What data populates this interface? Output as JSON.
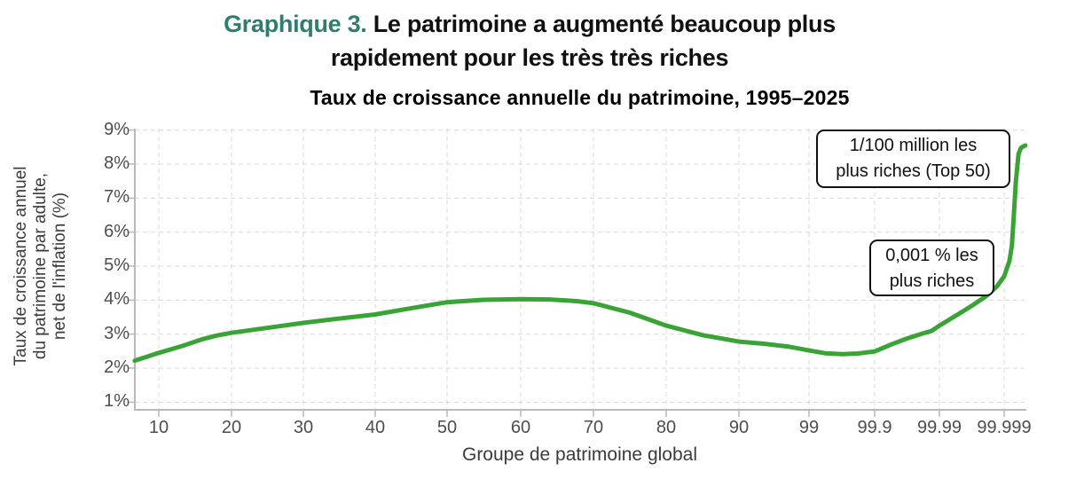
{
  "header": {
    "figure_label": "Graphique 3.",
    "title_line1": "Le patrimoine a augmenté beaucoup plus",
    "title_line2": "rapidement pour les très très riches"
  },
  "colors": {
    "accent_green": "#2E7D6E",
    "line_green": "#3AA336",
    "grid": "#D8D8D8",
    "axis": "#B9B9B9",
    "tick_text": "#4D4D4D",
    "label_text": "#3B3B3B",
    "title_text": "#111111",
    "annotation_border": "#111111"
  },
  "chart_data": {
    "type": "line",
    "title": "Taux de croissance annuelle du patrimoine, 1995–2025",
    "xlabel": "Groupe de patrimoine global",
    "ylabel": "Taux de croissance annuel du patrimoine par adulte, net de l'inflation (%)",
    "ylabel_lines": [
      "Taux de croissance annuel",
      "du patrimoine par adulte,",
      "net de l'inflation (%)"
    ],
    "x_ticks": [
      "10",
      "20",
      "30",
      "40",
      "50",
      "60",
      "70",
      "80",
      "90",
      "99",
      "99.9",
      "99.99",
      "99.999"
    ],
    "y_ticks": [
      "1%",
      "2%",
      "3%",
      "4%",
      "5%",
      "6%",
      "7%",
      "8%",
      "9%"
    ],
    "ylim": [
      1,
      9
    ],
    "grid": true,
    "x_scale": "percentile groups: linear from 10 to 90, logarithmic tail 99 / 99.9 / 99.99 / 99.999",
    "series": [
      {
        "name": "Taux de croissance annuelle du patrimoine, 1995–2025",
        "points": [
          [
            6.7,
            2.22
          ],
          [
            10,
            2.45
          ],
          [
            13.2,
            2.65
          ],
          [
            16,
            2.85
          ],
          [
            18,
            2.96
          ],
          [
            20,
            3.04
          ],
          [
            24.8,
            3.18
          ],
          [
            30,
            3.33
          ],
          [
            35,
            3.46
          ],
          [
            40,
            3.58
          ],
          [
            45.2,
            3.77
          ],
          [
            50,
            3.94
          ],
          [
            54.9,
            4.01
          ],
          [
            60,
            4.03
          ],
          [
            64,
            4.02
          ],
          [
            67.7,
            3.97
          ],
          [
            70,
            3.91
          ],
          [
            75,
            3.63
          ],
          [
            80,
            3.25
          ],
          [
            85,
            2.97
          ],
          [
            90,
            2.78
          ],
          [
            95.4,
            2.72
          ],
          [
            98.1,
            2.63
          ],
          [
            99,
            2.52
          ],
          [
            99.43,
            2.44
          ],
          [
            99.69,
            2.41
          ],
          [
            99.82,
            2.43
          ],
          [
            99.9,
            2.49
          ],
          [
            99.945,
            2.7
          ],
          [
            99.968,
            2.87
          ],
          [
            99.982,
            3.02
          ],
          [
            99.9867,
            3.09
          ],
          [
            99.99,
            3.25
          ],
          [
            99.995,
            3.6
          ],
          [
            99.9972,
            3.9
          ],
          [
            99.9981,
            4.12
          ],
          [
            99.9987,
            4.4
          ],
          [
            99.999,
            4.7
          ],
          [
            99.99917,
            5.15
          ],
          [
            99.99924,
            5.6
          ],
          [
            99.99929,
            6.5
          ],
          [
            99.99934,
            7.5
          ],
          [
            99.9994,
            8.3
          ],
          [
            99.99945,
            8.48
          ],
          [
            99.99953,
            8.55
          ]
        ]
      }
    ],
    "annotations": [
      {
        "lines": [
          "1/100 million les",
          "plus riches (Top 50)"
        ]
      },
      {
        "lines": [
          "0,001 % les",
          "plus riches"
        ]
      }
    ]
  }
}
